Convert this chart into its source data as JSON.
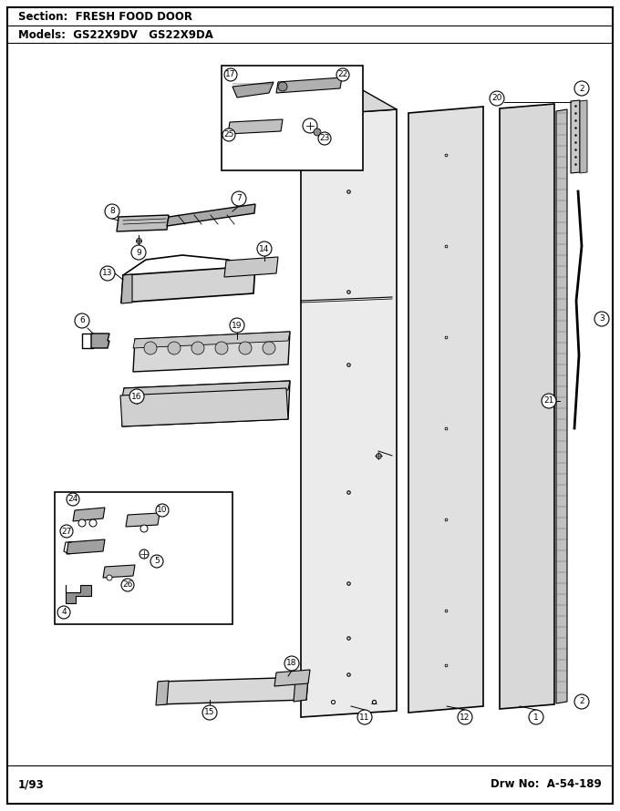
{
  "title_section": "Section:  FRESH FOOD DOOR",
  "title_models": "Models:  GS22X9DV   GS22X9DA",
  "footer_left": "1/93",
  "footer_right": "Drw No:  A-54-189",
  "bg_color": "#ffffff",
  "line_color": "#000000"
}
